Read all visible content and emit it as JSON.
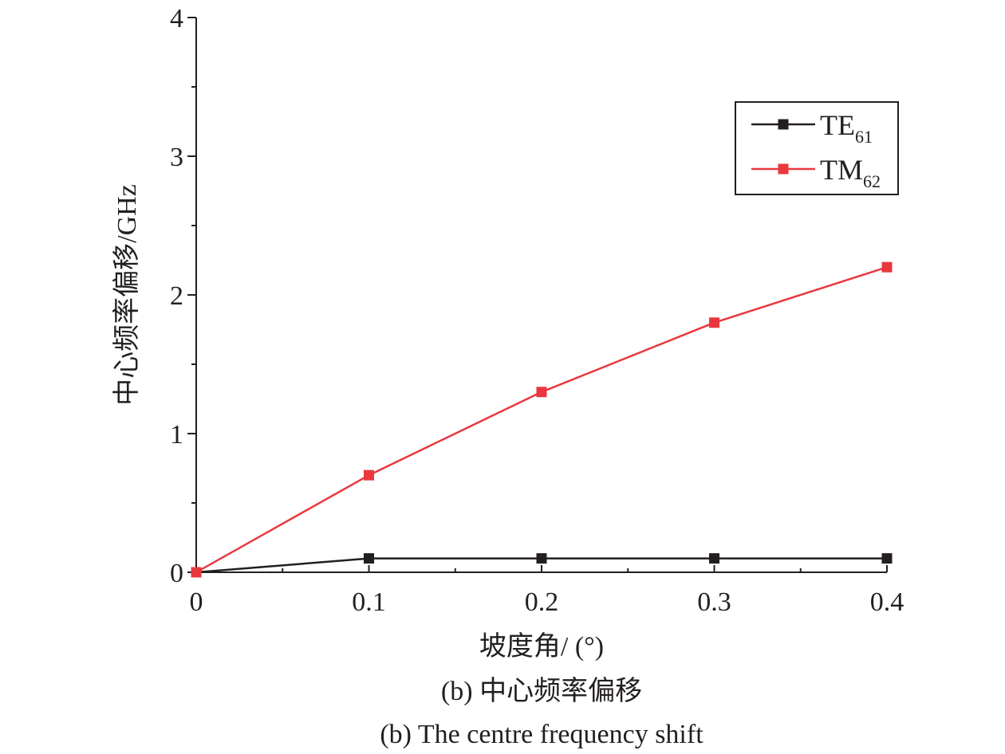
{
  "chart_data": {
    "type": "line",
    "xlabel": "坡度角/ (°)",
    "ylabel": "中心频率偏移/GHz",
    "xlim": [
      0,
      0.4
    ],
    "ylim": [
      0,
      4
    ],
    "x_ticks": [
      "0",
      "0.1",
      "0.2",
      "0.3",
      "0.4"
    ],
    "y_ticks": [
      "0",
      "1",
      "2",
      "3",
      "4"
    ],
    "grid": false,
    "legend_position": "top-right",
    "series": [
      {
        "name": "TE61",
        "label_main": "TE",
        "label_sub": "61",
        "color": "#231f20",
        "marker": "square",
        "x": [
          0,
          0.1,
          0.2,
          0.3,
          0.4
        ],
        "values": [
          0,
          0.1,
          0.1,
          0.1,
          0.1
        ]
      },
      {
        "name": "TM62",
        "label_main": "TM",
        "label_sub": "62",
        "color": "#e8383d",
        "marker": "square",
        "x": [
          0,
          0.1,
          0.2,
          0.3,
          0.4
        ],
        "values": [
          0,
          0.7,
          1.3,
          1.8,
          2.2
        ]
      }
    ]
  },
  "caption": {
    "cn": "(b) 中心频率偏移",
    "en": "(b) The centre frequency shift"
  }
}
